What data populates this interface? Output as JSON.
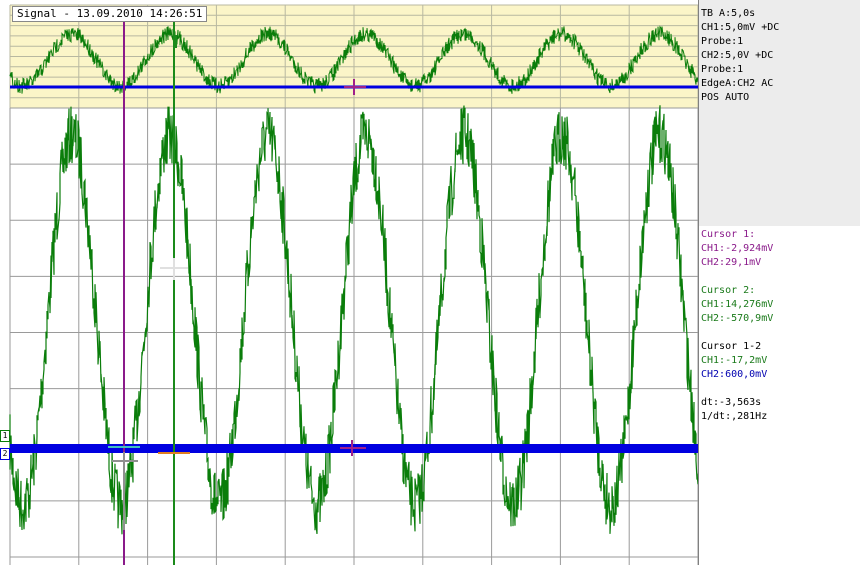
{
  "window": {
    "title": "Signal - 13.09.2010 14:26:51"
  },
  "settings": {
    "timebase": "TB A:5,0s",
    "ch1": "CH1:5,0mV +DC",
    "ch1_probe": "Probe:1",
    "ch2": "CH2:5,0V +DC",
    "ch2_probe": "Probe:1",
    "trigger": "EdgeA:CH2 AC",
    "position": "POS AUTO"
  },
  "cursors": {
    "c1": {
      "title": "Cursor 1:",
      "ch1": "CH1:-2,924mV",
      "ch2": "CH2:29,1mV"
    },
    "c2": {
      "title": "Cursor 2:",
      "ch1": "CH1:14,276mV",
      "ch2": "CH2:-570,9mV"
    },
    "diff": {
      "title": "Cursor 1-2",
      "ch1": "CH1:-17,2mV",
      "ch2": "CH2:600,0mV"
    },
    "dt": "dt:-3,563s",
    "inv_dt": "1/dt:,281Hz"
  },
  "channel_markers": {
    "ch1": "1",
    "ch2": "2"
  },
  "colors": {
    "ch1": "#0a7d0a",
    "ch2": "#0000e0",
    "cursor1": "#8a1a8a",
    "cursor2": "#1a8a1a",
    "zoom_bg": "#fbf5c8",
    "grid": "#9a9a9a"
  }
}
